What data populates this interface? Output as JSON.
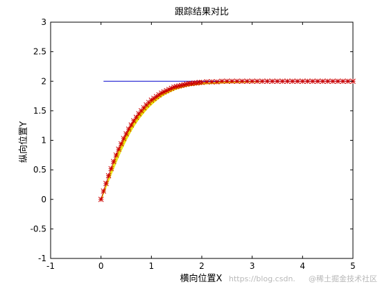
{
  "chart_data": {
    "type": "line",
    "title": "跟踪结果对比",
    "xlabel": "横向位置X",
    "ylabel": "纵向位置Y",
    "xlim": [
      -1,
      5
    ],
    "ylim": [
      -1,
      3
    ],
    "xticks": [
      "-1",
      "0",
      "1",
      "2",
      "3",
      "4",
      "5"
    ],
    "yticks": [
      "-1",
      "-0.5",
      "0",
      "0.5",
      "1",
      "1.5",
      "2",
      "2.5",
      "3"
    ],
    "grid": false,
    "legend": "none",
    "colors": {
      "reference": "#0000cc",
      "tracking": "#cc0000",
      "connectors": "#e6e600"
    },
    "series": [
      {
        "marker": "none",
        "x": [
          0.05,
          5.0
        ],
        "y": [
          2.0,
          2.0
        ]
      },
      {
        "marker": "*",
        "x": [
          0.0,
          0.05,
          0.1,
          0.15,
          0.2,
          0.25,
          0.3,
          0.35,
          0.4,
          0.45,
          0.5,
          0.55,
          0.6,
          0.65,
          0.7,
          0.75,
          0.8,
          0.85,
          0.9,
          0.95,
          1.0,
          1.05,
          1.1,
          1.15,
          1.2,
          1.25,
          1.3,
          1.35,
          1.4,
          1.45,
          1.5,
          1.55,
          1.6,
          1.65,
          1.7,
          1.75,
          1.8,
          1.85,
          1.9,
          1.95,
          2.0,
          2.1,
          2.2,
          2.3,
          2.4,
          2.5,
          2.6,
          2.7,
          2.8,
          2.9,
          3.0,
          3.1,
          3.2,
          3.3,
          3.4,
          3.5,
          3.6,
          3.7,
          3.8,
          3.9,
          4.0,
          4.1,
          4.2,
          4.3,
          4.4,
          4.5,
          4.6,
          4.7,
          4.8,
          4.9,
          5.0
        ],
        "y": [
          0.0,
          0.14,
          0.27,
          0.4,
          0.52,
          0.64,
          0.75,
          0.85,
          0.94,
          1.03,
          1.11,
          1.19,
          1.26,
          1.33,
          1.39,
          1.45,
          1.5,
          1.55,
          1.6,
          1.64,
          1.68,
          1.71,
          1.74,
          1.77,
          1.8,
          1.82,
          1.84,
          1.86,
          1.88,
          1.9,
          1.91,
          1.92,
          1.93,
          1.94,
          1.95,
          1.96,
          1.96,
          1.97,
          1.97,
          1.98,
          1.98,
          1.99,
          1.99,
          1.99,
          2.0,
          2.0,
          2.0,
          2.0,
          2.0,
          2.0,
          2.0,
          2.0,
          2.0,
          2.0,
          2.0,
          2.0,
          2.0,
          2.0,
          2.0,
          2.0,
          2.0,
          2.0,
          2.0,
          2.0,
          2.0,
          2.0,
          2.0,
          2.0,
          2.0,
          2.0,
          2.0
        ]
      }
    ]
  },
  "watermark": {
    "url": "https://blog.csdn.",
    "brand": "@稀土掘金技术社区"
  }
}
